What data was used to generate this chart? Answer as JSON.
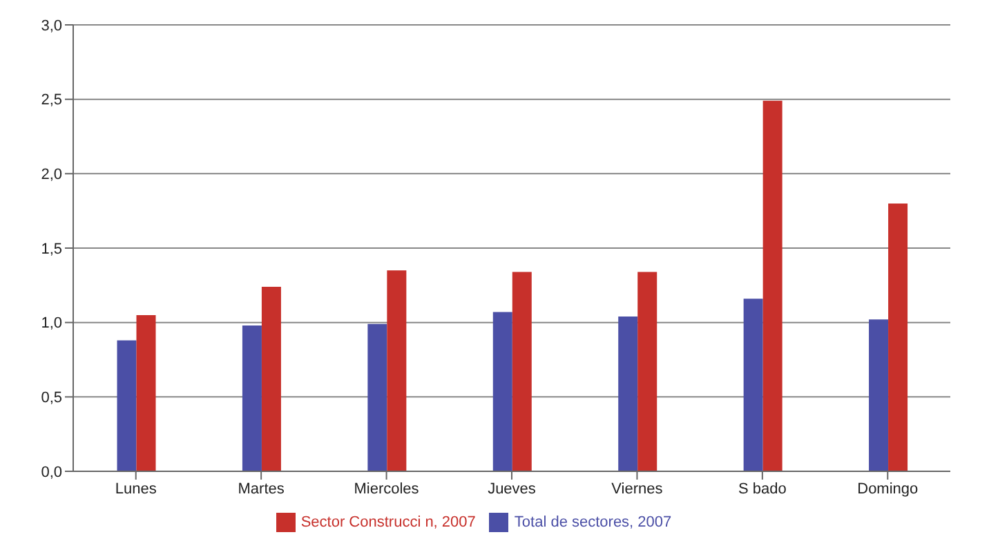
{
  "chart_data": {
    "type": "bar",
    "categories": [
      "Lunes",
      "Martes",
      "Miercoles",
      "Jueves",
      "Viernes",
      "S bado",
      "Domingo"
    ],
    "series": [
      {
        "name": "Total de sectores, 2007",
        "color": "#4b4fa6",
        "values": [
          0.88,
          0.98,
          0.99,
          1.07,
          1.04,
          1.16,
          1.02
        ]
      },
      {
        "name": "Sector Construcci n, 2007",
        "color": "#c7302b",
        "values": [
          1.05,
          1.24,
          1.35,
          1.34,
          1.34,
          2.49,
          1.8
        ]
      }
    ],
    "ylim": [
      0,
      3
    ],
    "yticks": [
      {
        "value": 0,
        "label": "0,0"
      },
      {
        "value": 0.5,
        "label": "0,5"
      },
      {
        "value": 1,
        "label": "1,0"
      },
      {
        "value": 1.5,
        "label": "1,5"
      },
      {
        "value": 2,
        "label": "2,0"
      },
      {
        "value": 2.5,
        "label": "2,5"
      },
      {
        "value": 3,
        "label": "3,0"
      }
    ],
    "grid": "y",
    "legend": "bottom"
  }
}
